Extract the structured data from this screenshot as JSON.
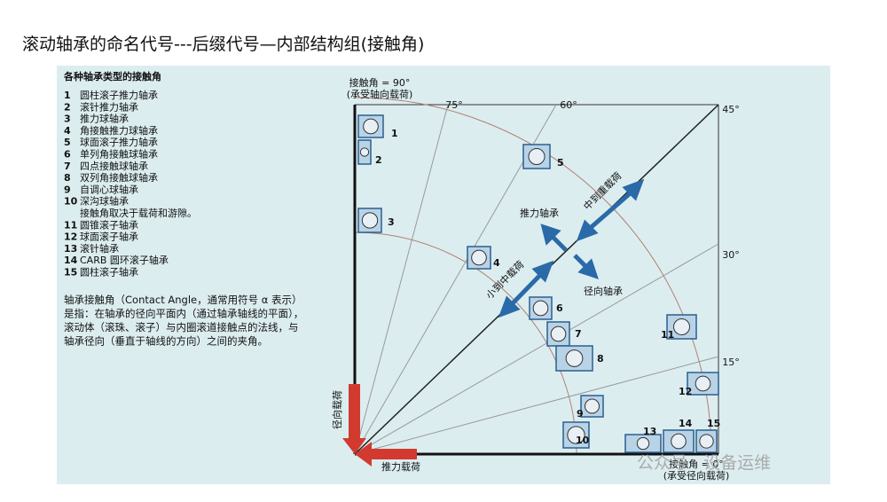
{
  "title": "滚动轴承的命名代号---后缀代号—内部结构组(接触角)",
  "panel": {
    "heading": "各种轴承类型的接触角",
    "items": [
      {
        "num": "1",
        "label": "圆柱滚子推力轴承"
      },
      {
        "num": "2",
        "label": "滚针推力轴承"
      },
      {
        "num": "3",
        "label": "推力球轴承"
      },
      {
        "num": "4",
        "label": "角接触推力球轴承"
      },
      {
        "num": "5",
        "label": "球面滚子推力轴承"
      },
      {
        "num": "6",
        "label": "单列角接触球轴承"
      },
      {
        "num": "7",
        "label": "四点接触球轴承"
      },
      {
        "num": "8",
        "label": "双列角接触球轴承"
      },
      {
        "num": "9",
        "label": "自调心球轴承"
      },
      {
        "num": "10",
        "label": "深沟球轴承"
      },
      {
        "num": "11",
        "label": "圆锥滚子轴承"
      },
      {
        "num": "12",
        "label": "球面滚子轴承"
      },
      {
        "num": "13",
        "label": "滚针轴承"
      },
      {
        "num": "14",
        "label": "CARB 圆环滚子轴承"
      },
      {
        "num": "15",
        "label": "圆柱滚子轴承"
      }
    ],
    "item_note": "接触角取决于载荷和游隙。",
    "description": [
      "轴承接触角（Contact Angle，通常用符号 α 表示）",
      "是指：在轴承的径向平面内（通过轴承轴线的平面），",
      "滚动体（滚珠、滚子）与内圈滚道接触点的法线，与",
      "轴承径向（垂直于轴线的方向）之间的夹角。"
    ]
  },
  "diagram": {
    "top_label": "接触角 = 90°",
    "top_sub": "(承受轴向载荷)",
    "bottom_label": "接触角 = 0°",
    "bottom_sub": "(承受径向载荷)",
    "angles": [
      "75°",
      "60°",
      "45°",
      "30°",
      "15°"
    ],
    "thrust": "推力轴承",
    "radial": "径向轴承",
    "heavy": "中到重载荷",
    "light": "小到中载荷",
    "radial_load": "径向载荷",
    "thrust_load": "推力载荷",
    "bearings": [
      "1",
      "2",
      "3",
      "4",
      "5",
      "6",
      "7",
      "8",
      "9",
      "10",
      "11",
      "12",
      "13",
      "14",
      "15"
    ]
  },
  "watermark": "公众号 · 设备运维"
}
